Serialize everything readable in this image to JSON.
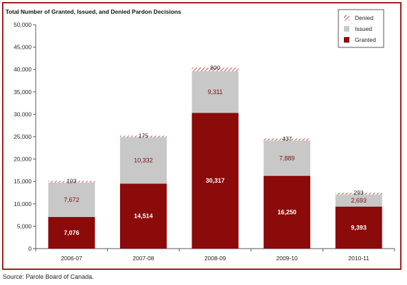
{
  "chart_data": {
    "type": "bar",
    "stacked": true,
    "title": "Total Number of Granted, Issued, and Denied Pardon Decisions",
    "categories": [
      "2006-07",
      "2007-08",
      "2008-09",
      "2009-10",
      "2010-11"
    ],
    "series": [
      {
        "name": "Granted",
        "values": [
          7076,
          14514,
          30317,
          16250,
          9393
        ],
        "color": "#8b0a0a",
        "labels": [
          "7,076",
          "14,514",
          "30,317",
          "16,250",
          "9,393"
        ]
      },
      {
        "name": "Issued",
        "values": [
          7672,
          10332,
          9311,
          7889,
          2693
        ],
        "color": "#c8c8c8",
        "labels": [
          "7,672",
          "10,332",
          "9,311",
          "7,889",
          "2,693"
        ]
      },
      {
        "name": "Denied",
        "values": [
          103,
          175,
          800,
          437,
          293
        ],
        "color": "#c0504d",
        "labels": [
          "103",
          "175",
          "800",
          "437",
          "293"
        ]
      }
    ],
    "ylim": [
      0,
      50000
    ],
    "yticks": [
      0,
      5000,
      10000,
      15000,
      20000,
      25000,
      30000,
      35000,
      40000,
      45000,
      50000
    ],
    "ytick_labels": [
      "0",
      "5,000",
      "10,000",
      "15,000",
      "20,000",
      "25,000",
      "30,000",
      "35,000",
      "40,000",
      "45,000",
      "50,000"
    ],
    "legend_position": "top-right",
    "legend_order": [
      "Denied",
      "Issued",
      "Granted"
    ],
    "grid": false
  },
  "source_note": "Source:  Parole Board of Canada."
}
